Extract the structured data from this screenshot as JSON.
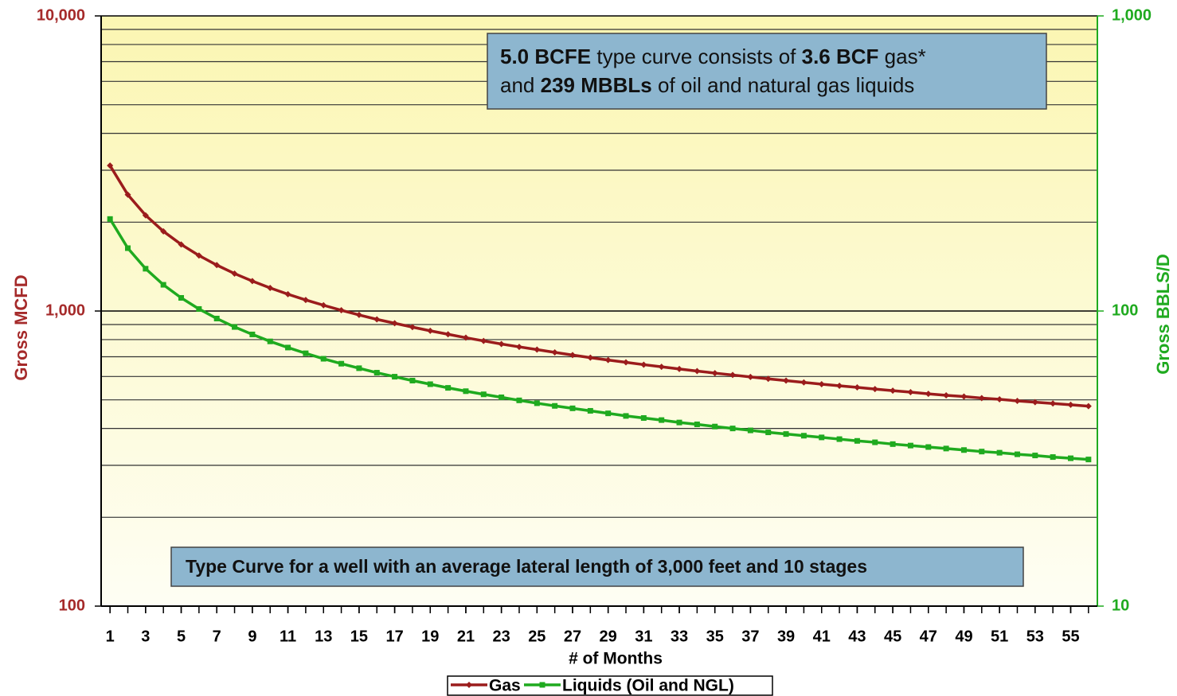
{
  "chart_data": {
    "type": "line",
    "xlabel": "# of Months",
    "ylabel": "Gross MCFD",
    "y2label": "Gross BBLS/D",
    "x": [
      1,
      2,
      3,
      4,
      5,
      6,
      7,
      8,
      9,
      10,
      11,
      12,
      13,
      14,
      15,
      16,
      17,
      18,
      19,
      20,
      21,
      22,
      23,
      24,
      25,
      26,
      27,
      28,
      29,
      30,
      31,
      32,
      33,
      34,
      35,
      36,
      37,
      38,
      39,
      40,
      41,
      42,
      43,
      44,
      45,
      46,
      47,
      48,
      49,
      50,
      51,
      52,
      53,
      54,
      55,
      56
    ],
    "xlim": [
      0.5,
      56.5
    ],
    "xticks": [
      1,
      3,
      5,
      7,
      9,
      11,
      13,
      15,
      17,
      19,
      21,
      23,
      25,
      27,
      29,
      31,
      33,
      35,
      37,
      39,
      41,
      43,
      45,
      47,
      49,
      51,
      53,
      55
    ],
    "log_y": true,
    "ylim": [
      100,
      10000
    ],
    "yticks": [
      100,
      {
        "value": 1000,
        "label": "1,000"
      },
      {
        "value": 10000,
        "label": "10,000"
      }
    ],
    "yminor": [
      200,
      300,
      400,
      500,
      600,
      700,
      800,
      900,
      2000,
      3000,
      4000,
      5000,
      6000,
      7000,
      8000,
      9000
    ],
    "y2lim": [
      10,
      1000
    ],
    "y2ticks": [
      10,
      100,
      {
        "value": 1000,
        "label": "1,000"
      }
    ],
    "grid": true,
    "series": [
      {
        "name": "Gas",
        "color": "#9b1c1c",
        "marker": "diamond",
        "values": [
          3110,
          2478,
          2110,
          1862,
          1681,
          1542,
          1431,
          1339,
          1263,
          1197,
          1140,
          1090,
          1046,
          1006,
          970,
          937,
          909,
          882,
          857,
          834,
          812,
          792,
          773,
          756,
          740,
          724,
          709,
          695,
          682,
          670,
          658,
          647,
          636,
          626,
          616,
          607,
          598,
          589,
          581,
          573,
          565,
          558,
          551,
          544,
          537,
          531,
          524,
          518,
          513,
          507,
          502,
          496,
          491,
          486,
          481,
          476
        ]
      },
      {
        "name": "Liquids (Oil and NGL)",
        "color": "#1faa1f",
        "marker": "square",
        "axis": "y2",
        "values": [
          205,
          163.3,
          139.1,
          122.7,
          110.8,
          101.6,
          94.3,
          88.3,
          83.3,
          78.9,
          75.2,
          71.9,
          68.9,
          66.3,
          64.0,
          61.8,
          59.9,
          58.1,
          56.5,
          54.9,
          53.5,
          52.2,
          51.0,
          49.8,
          48.7,
          47.7,
          46.8,
          45.9,
          45.0,
          44.1,
          43.4,
          42.7,
          41.9,
          41.3,
          40.6,
          40.0,
          39.4,
          38.8,
          38.3,
          37.8,
          37.3,
          36.8,
          36.3,
          35.9,
          35.4,
          35.0,
          34.6,
          34.2,
          33.8,
          33.4,
          33.1,
          32.7,
          32.4,
          32.0,
          31.7,
          31.4
        ]
      }
    ],
    "annotations": [
      {
        "lines": [
          [
            {
              "text": "5.0 BCFE",
              "bold": true
            },
            {
              "text": " type curve consists of ",
              "bold": false
            },
            {
              "text": "3.6 BCF",
              "bold": true
            },
            {
              "text": " gas*",
              "bold": false
            }
          ],
          [
            {
              "text": "and ",
              "bold": false
            },
            {
              "text": "239 MBBLs",
              "bold": true
            },
            {
              "text": " of oil and natural gas liquids",
              "bold": false
            }
          ]
        ]
      },
      {
        "lines": [
          [
            {
              "text": "Type Curve for a well with an average lateral length of 3,000 feet and 10 stages",
              "bold": true
            }
          ]
        ]
      }
    ]
  }
}
